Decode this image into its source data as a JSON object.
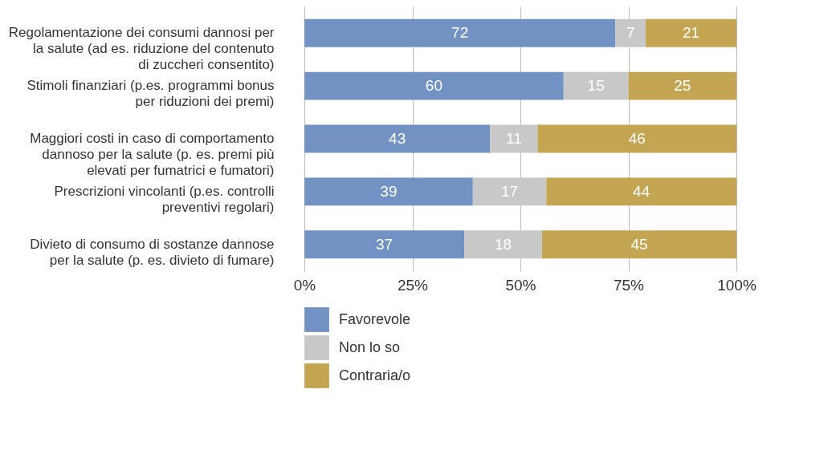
{
  "chart_data": {
    "type": "bar",
    "orientation": "horizontal",
    "stacked": true,
    "categories": [
      "Regolamentazione dei consumi dannosi per la salute (ad es. riduzione del contenuto di zuccheri consentito)",
      "Stimoli finanziari (p.es. programmi bonus per riduzioni dei premi)",
      "Maggiori costi in caso di comportamento dannoso per la salute (p. es. premi più elevati per fumatrici e fumatori)",
      "Prescrizioni vincolanti (p.es. controlli preventivi regolari)",
      "Divieto di consumo di sostanze dannose per la salute (p. es. divieto di fumare)"
    ],
    "series": [
      {
        "name": "Favorevole",
        "color": "#7292c4",
        "values": [
          72,
          60,
          43,
          39,
          37
        ]
      },
      {
        "name": "Non lo so",
        "color": "#c8c8c8",
        "values": [
          7,
          15,
          11,
          17,
          18
        ]
      },
      {
        "name": "Contraria/o",
        "color": "#c4a552",
        "values": [
          21,
          25,
          46,
          44,
          45
        ]
      }
    ],
    "xlim": [
      0,
      100
    ],
    "xticks": [
      {
        "value": 0,
        "label": "0%"
      },
      {
        "value": 25,
        "label": "25%"
      },
      {
        "value": 50,
        "label": "50%"
      },
      {
        "value": 75,
        "label": "75%"
      },
      {
        "value": 100,
        "label": "100%"
      }
    ],
    "grid": true,
    "legend": "bottom",
    "data_labels": true
  }
}
